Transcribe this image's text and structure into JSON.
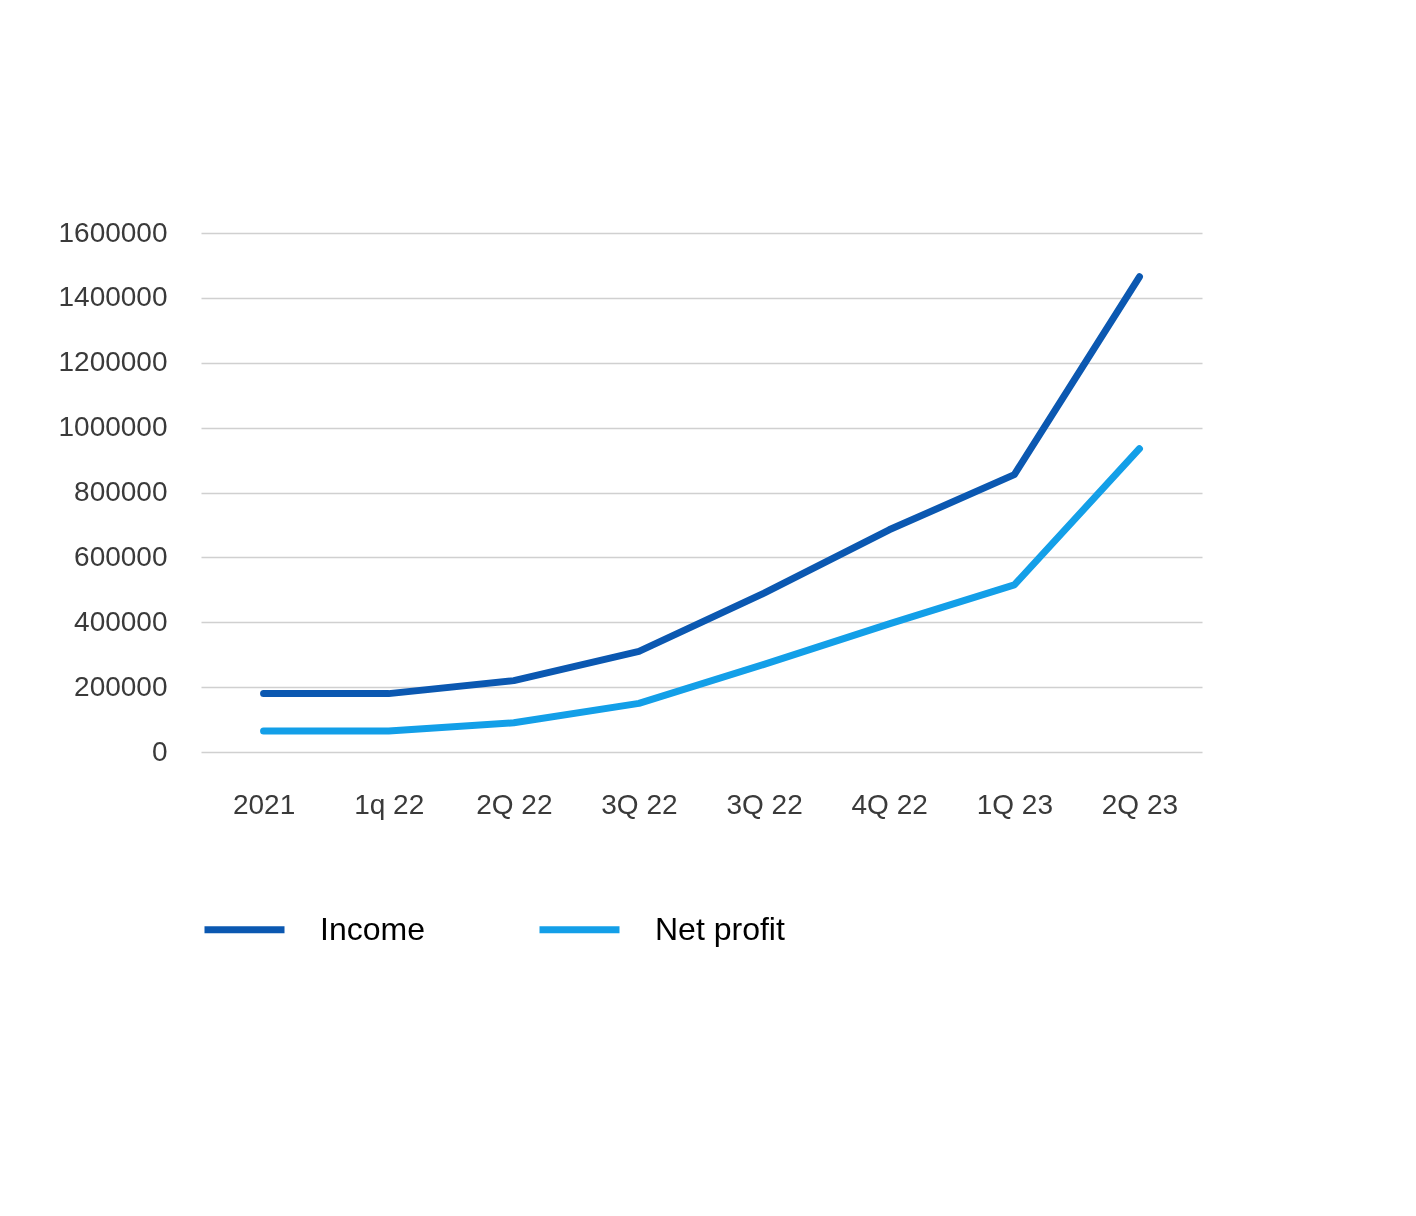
{
  "chart_data": {
    "type": "line",
    "categories": [
      "2021",
      "1q 22",
      "2Q 22",
      "3Q 22",
      "3Q 22",
      "4Q 22",
      "1Q 23",
      "2Q 23"
    ],
    "ylim": [
      0,
      1600000
    ],
    "yticks": [
      0,
      200000,
      400000,
      600000,
      800000,
      1000000,
      1200000,
      1400000,
      1600000
    ],
    "grid": "y",
    "legend": "bottom left",
    "series": [
      {
        "name": "Income",
        "color": "#0b58b1",
        "values": [
          180000,
          180000,
          220000,
          310000,
          490000,
          685000,
          855000,
          1465000
        ]
      },
      {
        "name": "Net profit",
        "color": "#139fe8",
        "values": [
          65000,
          65000,
          90000,
          150000,
          270000,
          395000,
          515000,
          935000
        ]
      }
    ]
  }
}
